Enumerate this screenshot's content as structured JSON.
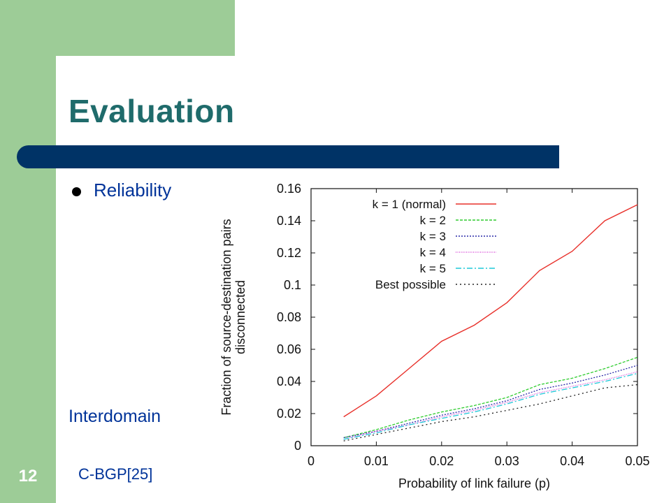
{
  "slide": {
    "title": "Evaluation",
    "bullet": "Reliability",
    "left_label": "Interdomain",
    "footer_ref": "C-BGP[25]",
    "slide_number": "12"
  },
  "colors": {
    "sidebar_green": "#9dcc97",
    "title_teal": "#1f6b6b",
    "title_bar_navy": "#003366",
    "text_blue": "#003399"
  },
  "chart_data": {
    "type": "line",
    "xlabel": "Probability of link failure (p)",
    "ylabel": [
      "Fraction of source-destination pairs",
      "disconnected"
    ],
    "xlim": [
      0,
      0.05
    ],
    "ylim": [
      0,
      0.16
    ],
    "xticks": [
      "0",
      "0.01",
      "0.02",
      "0.03",
      "0.04",
      "0.05"
    ],
    "yticks": [
      "0",
      "0.02",
      "0.04",
      "0.06",
      "0.08",
      "0.1",
      "0.12",
      "0.14",
      "0.16"
    ],
    "legend_position": "top-left",
    "x": [
      0.005,
      0.01,
      0.015,
      0.02,
      0.025,
      0.03,
      0.035,
      0.04,
      0.045,
      0.05
    ],
    "series": [
      {
        "name": "k = 1 (normal)",
        "color": "#e8302a",
        "dash": "",
        "values": [
          0.018,
          0.031,
          0.048,
          0.065,
          0.075,
          0.089,
          0.109,
          0.121,
          0.14,
          0.15
        ]
      },
      {
        "name": "k = 2",
        "color": "#2ecc2e",
        "dash": "4,2",
        "values": [
          0.005,
          0.01,
          0.016,
          0.021,
          0.025,
          0.03,
          0.038,
          0.042,
          0.048,
          0.055
        ]
      },
      {
        "name": "k = 3",
        "color": "#2a2aa8",
        "dash": "2,2",
        "values": [
          0.005,
          0.009,
          0.014,
          0.019,
          0.023,
          0.028,
          0.035,
          0.039,
          0.044,
          0.05
        ]
      },
      {
        "name": "k = 4",
        "color": "#d84fd8",
        "dash": "1,1.5",
        "values": [
          0.004,
          0.009,
          0.013,
          0.018,
          0.022,
          0.027,
          0.033,
          0.037,
          0.041,
          0.046
        ]
      },
      {
        "name": "k = 5",
        "color": "#1ec8d8",
        "dash": "8,3,2,3",
        "values": [
          0.004,
          0.008,
          0.013,
          0.017,
          0.021,
          0.026,
          0.032,
          0.036,
          0.04,
          0.045
        ]
      },
      {
        "name": "Best possible",
        "color": "#222222",
        "dash": "2,4",
        "values": [
          0.003,
          0.007,
          0.011,
          0.015,
          0.018,
          0.022,
          0.026,
          0.031,
          0.036,
          0.038
        ]
      }
    ]
  }
}
